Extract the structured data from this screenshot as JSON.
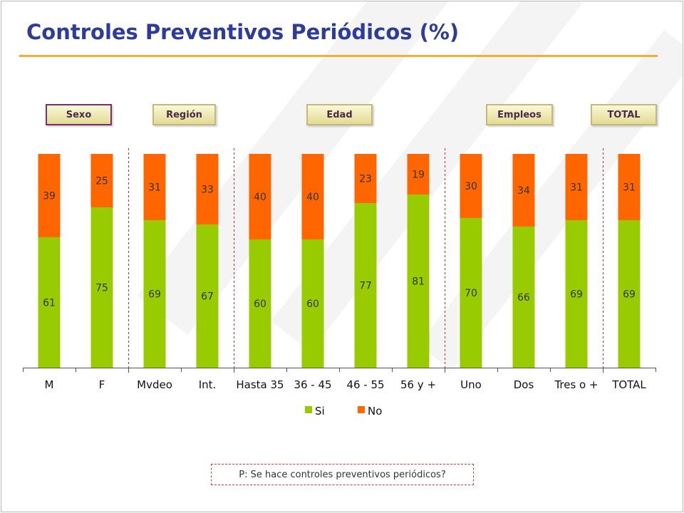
{
  "title": "Controles Preventivos Periódicos (%)",
  "groups": [
    {
      "label": "Sexo",
      "highlighted": true
    },
    {
      "label": "Región",
      "highlighted": false
    },
    {
      "label": "Edad",
      "highlighted": false
    },
    {
      "label": "Empleos",
      "highlighted": false
    },
    {
      "label": "TOTAL",
      "highlighted": false
    }
  ],
  "question": "P: Se hace controles preventivos periódicos?",
  "chart_data": {
    "type": "bar",
    "stacked": true,
    "categories": [
      "M",
      "F",
      "Mvdeo",
      "Int.",
      "Hasta 35",
      "36 - 45",
      "46 - 55",
      "56 y +",
      "Uno",
      "Dos",
      "Tres o +",
      "TOTAL"
    ],
    "series": [
      {
        "name": "Si",
        "color": "#99cc00",
        "values": [
          61,
          75,
          69,
          67,
          60,
          60,
          77,
          81,
          70,
          66,
          69,
          69
        ]
      },
      {
        "name": "No",
        "color": "#ff6600",
        "values": [
          39,
          25,
          31,
          33,
          40,
          40,
          23,
          19,
          30,
          34,
          31,
          31
        ]
      }
    ],
    "ylim": [
      0,
      100
    ],
    "legend_position": "bottom",
    "grid": false,
    "group_separators_after": [
      "F",
      "Int.",
      "56 y +",
      "Tres o +"
    ]
  }
}
